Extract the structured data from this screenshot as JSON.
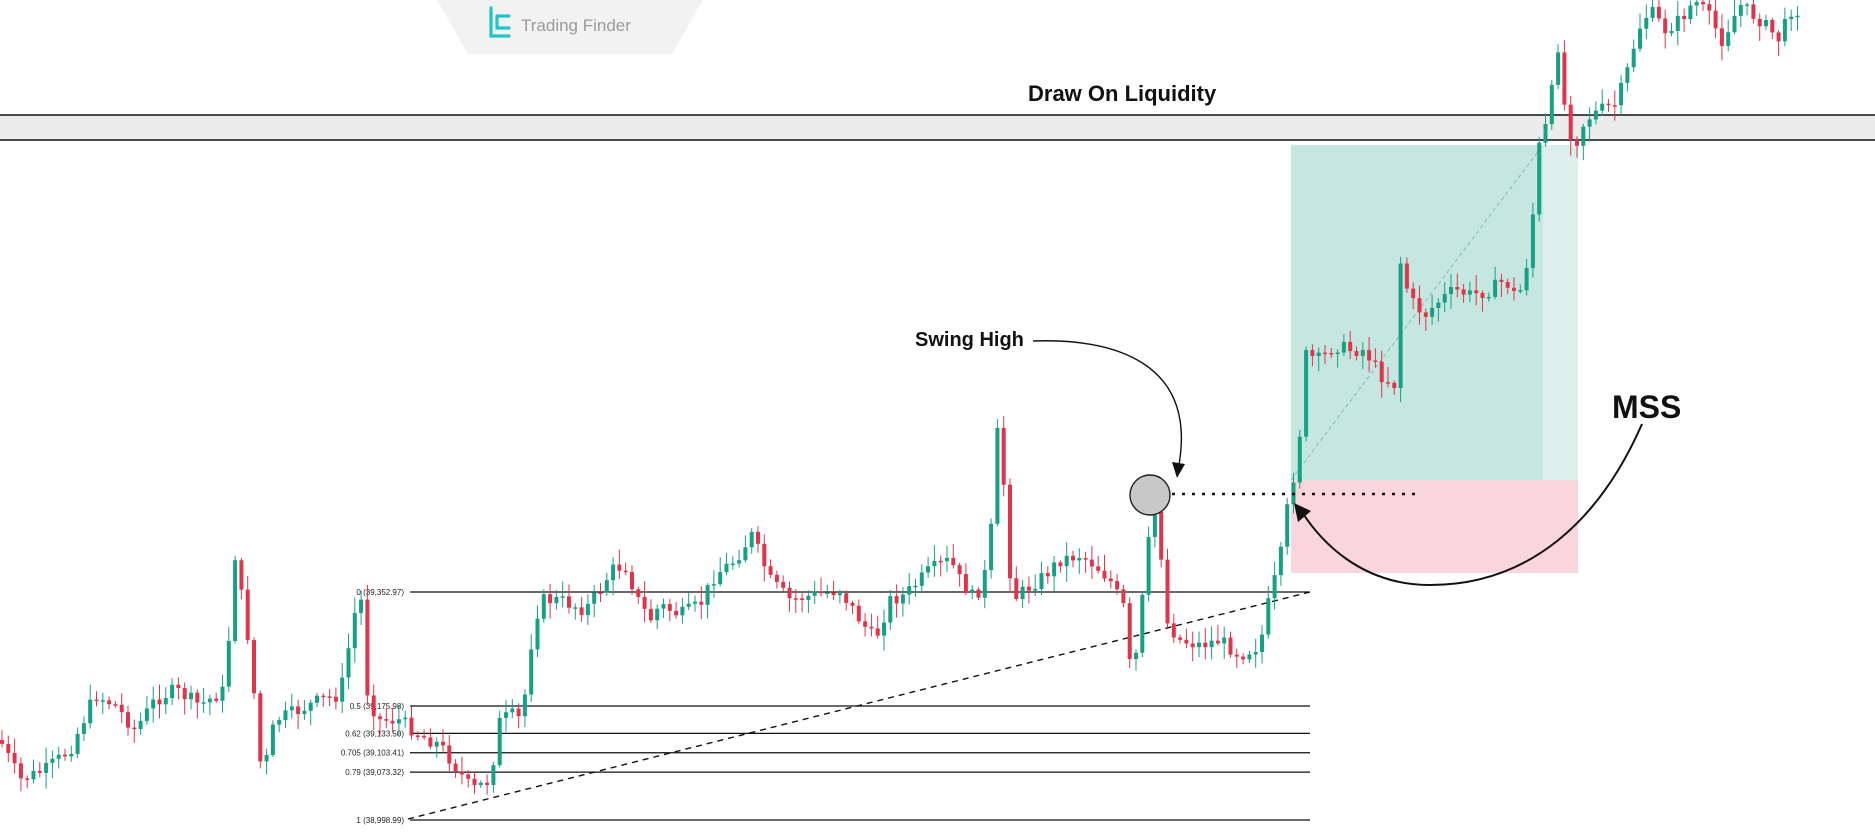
{
  "brand": {
    "name": "Trading Finder"
  },
  "annotations": {
    "draw_on_liquidity": "Draw On Liquidity",
    "swing_high": "Swing High",
    "mss": "MSS"
  },
  "colors": {
    "bull": "#16a085",
    "bear": "#e0344a",
    "profit_zone": "#b9e3da",
    "loss_zone": "#f8d2d6",
    "line": "#111111",
    "brand": "#1fc6c9"
  },
  "chart_data": {
    "type": "candlestick",
    "fib_levels": [
      {
        "label": "0 (39,352.97)",
        "ratio": 0,
        "price": 39352.97
      },
      {
        "label": "0.5 (39,175.98)",
        "ratio": 0.5,
        "price": 39175.98
      },
      {
        "label": "0.62 (39,133.50)",
        "ratio": 0.62,
        "price": 39133.5
      },
      {
        "label": "0.705 (39,103.41)",
        "ratio": 0.705,
        "price": 39103.41
      },
      {
        "label": "0.79 (39,073.32)",
        "ratio": 0.79,
        "price": 39073.32
      },
      {
        "label": "1 (38,998.99)",
        "ratio": 1,
        "price": 38998.99
      }
    ],
    "price_trend": "ranging, then a break above the swing high followed by a rally into the liquidity level"
  }
}
